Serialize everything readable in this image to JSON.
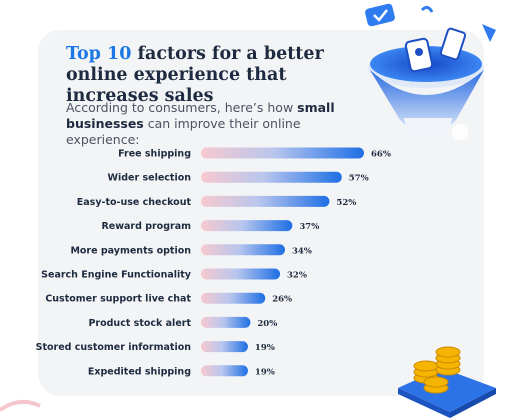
{
  "header": {
    "title_accent": "Top 10",
    "title_rest": " factors for a better online experience that increases sales",
    "subtitle_pre": "According to consumers, here’s how ",
    "subtitle_bold": "small businesses",
    "subtitle_post": " can improve their online experience:"
  },
  "chart_data": {
    "type": "bar",
    "orientation": "horizontal",
    "categories": [
      "Free shipping",
      "Wider selection",
      "Easy-to-use checkout",
      "Reward program",
      "More payments option",
      "Search Engine Functionality",
      "Customer support live chat",
      "Product stock alert",
      "Stored customer information",
      "Expedited shipping"
    ],
    "values": [
      66,
      57,
      52,
      37,
      34,
      32,
      26,
      20,
      19,
      19
    ],
    "value_labels": [
      "66%",
      "57%",
      "52%",
      "37%",
      "34%",
      "32%",
      "26%",
      "20%",
      "19%",
      "19%"
    ],
    "xlim": [
      0,
      66
    ],
    "grid": false,
    "legend": "none"
  },
  "colors": {
    "bar_start": "#f7c9cf",
    "bar_end": "#1e6fe4",
    "accent": "#1d78e6",
    "text": "#1e2a3f"
  },
  "icons": [
    "funnel-icon",
    "checkmark-card-icon",
    "mobile-phone-icon",
    "coin-stack-icon"
  ]
}
